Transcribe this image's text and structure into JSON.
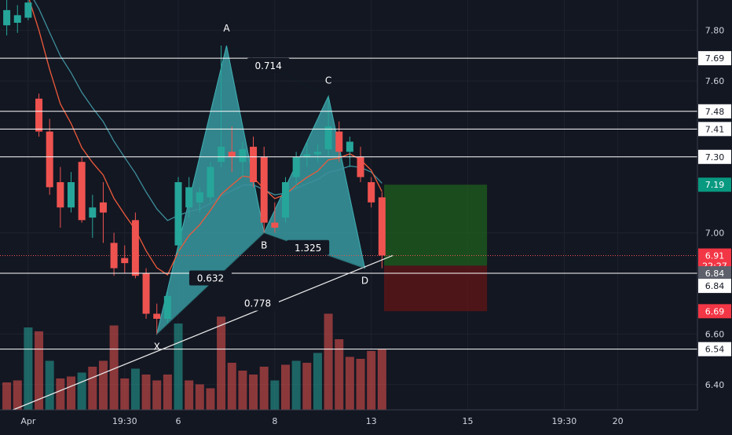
{
  "chart_data": {
    "type": "candlestick",
    "theme": {
      "background": "#131722",
      "grid": "#1e222d",
      "up_color": "#26a69a",
      "down_color": "#ef5350",
      "pattern_fill": "#3fb0b5",
      "hline_color": "#ffffff",
      "ma_fast": "#ef5a3a",
      "ma_slow": "#3d8f9c",
      "profit_zone": "#1f5f1e",
      "loss_zone": "#5e1518"
    },
    "x_axis": {
      "ticks": [
        {
          "label": "Apr",
          "index": 2
        },
        {
          "label": "19:30",
          "index": 11
        },
        {
          "label": "6",
          "index": 16
        },
        {
          "label": "8",
          "index": 25
        },
        {
          "label": "13",
          "index": 34
        },
        {
          "label": "15",
          "index": 43
        },
        {
          "label": "19:30",
          "index": 52
        },
        {
          "label": "20",
          "index": 57
        }
      ]
    },
    "y_axis": {
      "range": [
        6.3,
        7.92
      ],
      "ticks": [
        "7.80",
        "7.60",
        "7.30",
        "7.00",
        "6.60",
        "6.40"
      ]
    },
    "price_tags": [
      {
        "label": "7.69",
        "price": 7.69,
        "style": "white"
      },
      {
        "label": "7.48",
        "price": 7.48,
        "style": "white"
      },
      {
        "label": "7.41",
        "price": 7.41,
        "style": "white"
      },
      {
        "label": "7.30",
        "price": 7.3,
        "style": "white"
      },
      {
        "label": "7.19",
        "price": 7.19,
        "style": "green"
      },
      {
        "label": "6.91",
        "price": 6.91,
        "style": "red"
      },
      {
        "label": "22:27",
        "price": 6.869,
        "style": "red"
      },
      {
        "label": "6.84",
        "price": 6.84,
        "style": "gray"
      },
      {
        "label": "6.84",
        "price": 6.79,
        "style": "white"
      },
      {
        "label": "6.69",
        "price": 6.69,
        "style": "red"
      },
      {
        "label": "6.54",
        "price": 6.54,
        "style": "white"
      }
    ],
    "horizontal_lines": [
      7.69,
      7.48,
      7.41,
      7.3,
      6.84,
      6.54
    ],
    "current_price": 6.91,
    "harmonic_pattern": {
      "points": [
        {
          "label": "X",
          "index": 14,
          "price": 6.6
        },
        {
          "label": "A",
          "index": 20.5,
          "price": 7.74
        },
        {
          "label": "B",
          "index": 24,
          "price": 7.0
        },
        {
          "label": "C",
          "index": 30,
          "price": 7.54
        },
        {
          "label": "D",
          "index": 33.4,
          "price": 6.86
        }
      ],
      "ratios": [
        {
          "label": "0.714",
          "index": 24.4,
          "price": 7.66
        },
        {
          "label": "0.632",
          "index": 19,
          "price": 6.82
        },
        {
          "label": "1.325",
          "index": 28.1,
          "price": 6.94
        },
        {
          "label": "0.778",
          "index": 23.4,
          "price": 6.72
        }
      ]
    },
    "trendline": {
      "from": {
        "index": 0,
        "price": 6.29
      },
      "to": {
        "index": 36,
        "price": 6.91
      }
    },
    "position_zone": {
      "start_index": 35.2,
      "end_index": 44.8,
      "entry": 6.87,
      "target": 7.19,
      "stop": 6.69
    },
    "candles": [
      {
        "o": 7.82,
        "h": 7.95,
        "l": 7.78,
        "c": 7.88
      },
      {
        "o": 7.83,
        "h": 7.9,
        "l": 7.79,
        "c": 7.86
      },
      {
        "o": 7.85,
        "h": 7.92,
        "l": 7.84,
        "c": 7.91
      },
      {
        "o": 7.53,
        "h": 7.55,
        "l": 7.38,
        "c": 7.4
      },
      {
        "o": 7.4,
        "h": 7.45,
        "l": 7.15,
        "c": 7.18
      },
      {
        "o": 7.2,
        "h": 7.26,
        "l": 7.02,
        "c": 7.1
      },
      {
        "o": 7.1,
        "h": 7.24,
        "l": 7.08,
        "c": 7.2
      },
      {
        "o": 7.28,
        "h": 7.3,
        "l": 7.04,
        "c": 7.05
      },
      {
        "o": 7.06,
        "h": 7.15,
        "l": 6.98,
        "c": 7.1
      },
      {
        "o": 7.12,
        "h": 7.2,
        "l": 6.96,
        "c": 7.08
      },
      {
        "o": 6.96,
        "h": 7.0,
        "l": 6.83,
        "c": 6.86
      },
      {
        "o": 6.9,
        "h": 6.95,
        "l": 6.84,
        "c": 6.88
      },
      {
        "o": 7.05,
        "h": 7.08,
        "l": 6.82,
        "c": 6.83
      },
      {
        "o": 6.84,
        "h": 6.86,
        "l": 6.66,
        "c": 6.68
      },
      {
        "o": 6.68,
        "h": 6.72,
        "l": 6.6,
        "c": 6.66
      },
      {
        "o": 6.66,
        "h": 6.77,
        "l": 6.64,
        "c": 6.75
      },
      {
        "o": 6.95,
        "h": 7.22,
        "l": 6.92,
        "c": 7.2
      },
      {
        "o": 7.1,
        "h": 7.22,
        "l": 7.06,
        "c": 7.18
      },
      {
        "o": 7.12,
        "h": 7.18,
        "l": 7.08,
        "c": 7.16
      },
      {
        "o": 7.14,
        "h": 7.28,
        "l": 7.12,
        "c": 7.26
      },
      {
        "o": 7.28,
        "h": 7.74,
        "l": 7.26,
        "c": 7.34
      },
      {
        "o": 7.32,
        "h": 7.42,
        "l": 7.24,
        "c": 7.3
      },
      {
        "o": 7.28,
        "h": 7.36,
        "l": 7.22,
        "c": 7.33
      },
      {
        "o": 7.34,
        "h": 7.38,
        "l": 7.18,
        "c": 7.2
      },
      {
        "o": 7.3,
        "h": 7.34,
        "l": 7.0,
        "c": 7.04
      },
      {
        "o": 7.04,
        "h": 7.12,
        "l": 7.0,
        "c": 7.02
      },
      {
        "o": 7.06,
        "h": 7.22,
        "l": 7.04,
        "c": 7.2
      },
      {
        "o": 7.22,
        "h": 7.32,
        "l": 7.18,
        "c": 7.3
      },
      {
        "o": 7.3,
        "h": 7.36,
        "l": 7.26,
        "c": 7.31
      },
      {
        "o": 7.31,
        "h": 7.35,
        "l": 7.28,
        "c": 7.32
      },
      {
        "o": 7.33,
        "h": 7.54,
        "l": 7.3,
        "c": 7.42
      },
      {
        "o": 7.4,
        "h": 7.44,
        "l": 7.28,
        "c": 7.32
      },
      {
        "o": 7.32,
        "h": 7.38,
        "l": 7.26,
        "c": 7.36
      },
      {
        "o": 7.3,
        "h": 7.34,
        "l": 7.2,
        "c": 7.22
      },
      {
        "o": 7.2,
        "h": 7.22,
        "l": 7.1,
        "c": 7.12
      },
      {
        "o": 7.14,
        "h": 7.16,
        "l": 6.86,
        "c": 6.91
      }
    ],
    "volumes": [
      {
        "v": 0.28,
        "up": false
      },
      {
        "v": 0.3,
        "up": false
      },
      {
        "v": 0.84,
        "up": true
      },
      {
        "v": 0.8,
        "up": false
      },
      {
        "v": 0.5,
        "up": true
      },
      {
        "v": 0.32,
        "up": false
      },
      {
        "v": 0.34,
        "up": false
      },
      {
        "v": 0.38,
        "up": true
      },
      {
        "v": 0.44,
        "up": false
      },
      {
        "v": 0.5,
        "up": false
      },
      {
        "v": 0.86,
        "up": false
      },
      {
        "v": 0.32,
        "up": false
      },
      {
        "v": 0.42,
        "up": true
      },
      {
        "v": 0.36,
        "up": false
      },
      {
        "v": 0.3,
        "up": false
      },
      {
        "v": 0.36,
        "up": false
      },
      {
        "v": 0.88,
        "up": true
      },
      {
        "v": 0.3,
        "up": false
      },
      {
        "v": 0.26,
        "up": false
      },
      {
        "v": 0.22,
        "up": false
      },
      {
        "v": 0.95,
        "up": false
      },
      {
        "v": 0.48,
        "up": false
      },
      {
        "v": 0.4,
        "up": false
      },
      {
        "v": 0.36,
        "up": false
      },
      {
        "v": 0.44,
        "up": false
      },
      {
        "v": 0.3,
        "up": true
      },
      {
        "v": 0.46,
        "up": false
      },
      {
        "v": 0.5,
        "up": true
      },
      {
        "v": 0.48,
        "up": false
      },
      {
        "v": 0.58,
        "up": true
      },
      {
        "v": 0.98,
        "up": false
      },
      {
        "v": 0.72,
        "up": false
      },
      {
        "v": 0.54,
        "up": false
      },
      {
        "v": 0.52,
        "up": false
      },
      {
        "v": 0.6,
        "up": false
      },
      {
        "v": 0.62,
        "up": false
      }
    ]
  }
}
